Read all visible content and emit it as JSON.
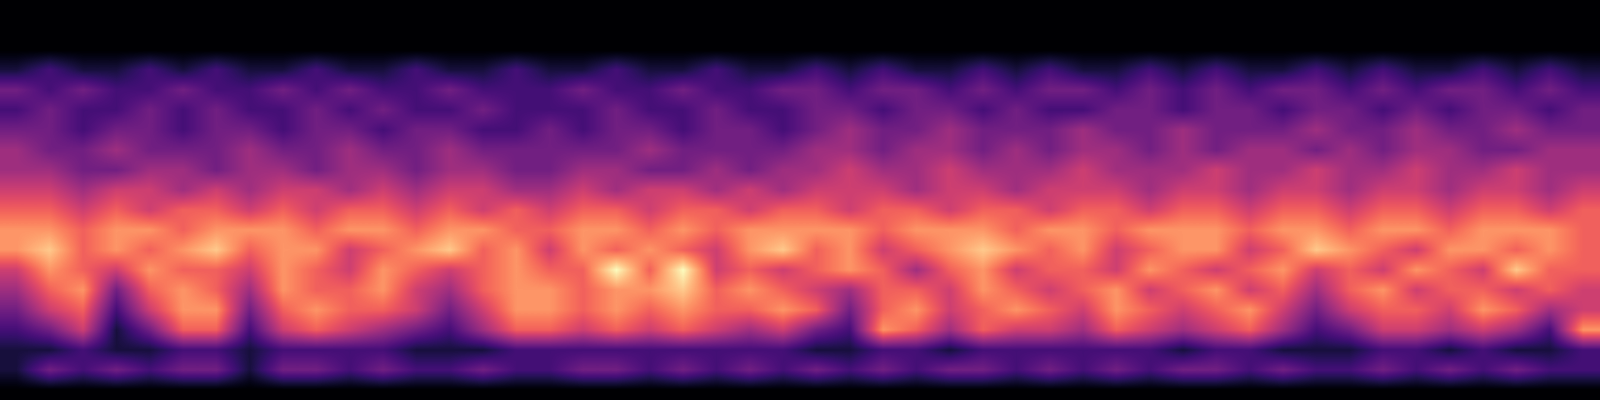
{
  "chart_data": {
    "type": "heatmap",
    "color": "magma",
    "tick_labels": false,
    "grid": false,
    "value_range": [
      0,
      9
    ],
    "cells": [
      [
        0,
        0,
        0,
        0,
        0,
        0,
        0,
        0,
        0,
        0,
        0,
        0,
        0,
        0,
        0,
        0,
        0,
        0,
        0,
        0,
        0,
        0,
        0,
        0,
        0,
        0,
        0,
        0,
        0,
        0,
        0,
        0,
        0,
        0,
        0,
        0,
        0,
        0,
        0,
        0,
        0,
        0,
        0,
        0,
        0,
        0,
        0,
        0
      ],
      [
        0,
        0,
        0,
        0,
        0,
        0,
        0,
        0,
        0,
        0,
        0,
        0,
        0,
        0,
        0,
        0,
        0,
        0,
        0,
        0,
        0,
        0,
        0,
        0,
        0,
        0,
        0,
        0,
        0,
        0,
        0,
        0,
        0,
        0,
        0,
        0,
        0,
        0,
        0,
        0,
        0,
        0,
        0,
        0,
        0,
        0,
        0,
        0
      ],
      [
        0,
        0,
        0,
        0,
        0,
        0,
        0,
        0,
        0,
        0,
        0,
        0,
        0,
        0,
        0,
        0,
        0,
        0,
        0,
        0,
        0,
        0,
        0,
        0,
        0,
        0,
        0,
        0,
        0,
        0,
        0,
        0,
        0,
        0,
        0,
        0,
        0,
        0,
        0,
        0,
        0,
        0,
        0,
        0,
        0,
        0,
        0,
        0
      ],
      [
        1,
        2,
        1,
        1,
        2,
        1,
        2,
        1,
        1,
        2,
        1,
        1,
        2,
        1,
        1,
        2,
        1,
        1,
        2,
        1,
        1,
        2,
        1,
        1,
        2,
        1,
        2,
        1,
        1,
        2,
        1,
        2,
        1,
        1,
        2,
        1,
        2,
        1,
        1,
        2,
        1,
        2,
        1,
        1,
        2,
        1,
        2,
        1
      ],
      [
        3,
        2,
        3,
        2,
        2,
        3,
        2,
        2,
        3,
        2,
        3,
        2,
        2,
        3,
        2,
        2,
        2,
        3,
        2,
        2,
        3,
        2,
        2,
        3,
        3,
        2,
        3,
        3,
        2,
        3,
        2,
        3,
        3,
        2,
        3,
        2,
        3,
        2,
        3,
        3,
        2,
        3,
        2,
        3,
        3,
        2,
        3,
        2
      ],
      [
        2,
        3,
        2,
        2,
        3,
        2,
        3,
        2,
        2,
        3,
        2,
        3,
        2,
        2,
        3,
        2,
        2,
        2,
        3,
        2,
        2,
        3,
        2,
        2,
        3,
        3,
        2,
        3,
        3,
        2,
        3,
        2,
        2,
        3,
        3,
        2,
        3,
        3,
        2,
        3,
        3,
        2,
        3,
        2,
        3,
        3,
        2,
        3
      ],
      [
        3,
        3,
        2,
        3,
        3,
        2,
        3,
        3,
        2,
        3,
        3,
        2,
        3,
        3,
        2,
        2,
        3,
        2,
        3,
        3,
        2,
        3,
        3,
        2,
        3,
        4,
        3,
        3,
        4,
        3,
        3,
        3,
        4,
        3,
        3,
        4,
        3,
        3,
        3,
        4,
        3,
        3,
        4,
        3,
        3,
        4,
        3,
        3
      ],
      [
        4,
        3,
        3,
        4,
        3,
        3,
        3,
        4,
        3,
        3,
        4,
        3,
        3,
        4,
        3,
        3,
        3,
        3,
        3,
        4,
        3,
        3,
        3,
        3,
        4,
        4,
        3,
        4,
        4,
        3,
        4,
        3,
        4,
        4,
        3,
        4,
        3,
        4,
        4,
        3,
        4,
        3,
        4,
        4,
        3,
        3,
        4,
        4
      ],
      [
        4,
        4,
        3,
        3,
        4,
        4,
        3,
        4,
        4,
        3,
        4,
        4,
        3,
        4,
        4,
        3,
        3,
        4,
        4,
        3,
        3,
        4,
        3,
        4,
        4,
        5,
        4,
        4,
        5,
        4,
        4,
        4,
        5,
        4,
        4,
        4,
        5,
        4,
        4,
        5,
        4,
        4,
        5,
        4,
        4,
        5,
        4,
        4
      ],
      [
        5,
        5,
        4,
        5,
        5,
        4,
        5,
        4,
        5,
        5,
        4,
        5,
        4,
        5,
        5,
        4,
        4,
        5,
        4,
        5,
        5,
        4,
        5,
        4,
        5,
        5,
        5,
        4,
        5,
        5,
        4,
        5,
        5,
        5,
        4,
        5,
        5,
        4,
        5,
        5,
        4,
        5,
        5,
        4,
        5,
        5,
        4,
        5
      ],
      [
        6,
        6,
        5,
        6,
        5,
        6,
        6,
        5,
        6,
        5,
        6,
        6,
        5,
        6,
        5,
        6,
        5,
        6,
        6,
        5,
        6,
        6,
        5,
        6,
        6,
        5,
        6,
        6,
        5,
        6,
        6,
        5,
        6,
        6,
        5,
        6,
        6,
        5,
        6,
        6,
        5,
        6,
        6,
        5,
        6,
        6,
        5,
        6
      ],
      [
        7,
        7,
        6,
        7,
        7,
        6,
        7,
        7,
        7,
        6,
        7,
        7,
        6,
        7,
        7,
        6,
        6,
        7,
        7,
        6,
        7,
        6,
        7,
        7,
        7,
        7,
        6,
        7,
        7,
        7,
        6,
        7,
        7,
        6,
        7,
        7,
        7,
        6,
        7,
        7,
        6,
        7,
        7,
        6,
        7,
        7,
        7,
        6
      ],
      [
        7,
        8,
        6,
        7,
        6,
        7,
        8,
        6,
        7,
        7,
        5,
        6,
        7,
        8,
        6,
        7,
        5,
        7,
        6,
        7,
        6,
        5,
        7,
        8,
        6,
        7,
        5,
        6,
        7,
        8,
        7,
        6,
        7,
        5,
        6,
        7,
        7,
        5,
        6,
        8,
        7,
        6,
        5,
        7,
        7,
        6,
        7,
        6
      ],
      [
        5,
        7,
        6,
        5,
        7,
        6,
        6,
        5,
        7,
        6,
        5,
        7,
        6,
        5,
        6,
        7,
        6,
        6,
        9,
        6,
        9,
        5,
        6,
        5,
        6,
        7,
        6,
        4,
        6,
        7,
        5,
        6,
        6,
        5,
        7,
        6,
        5,
        6,
        7,
        5,
        6,
        5,
        7,
        6,
        5,
        8,
        6,
        6
      ],
      [
        4,
        6,
        7,
        3,
        6,
        7,
        6,
        4,
        7,
        6,
        6,
        7,
        5,
        4,
        6,
        7,
        7,
        6,
        7,
        7,
        8,
        6,
        7,
        6,
        5,
        4,
        6,
        6,
        5,
        7,
        6,
        5,
        6,
        7,
        5,
        6,
        7,
        5,
        6,
        4,
        6,
        7,
        5,
        6,
        6,
        5,
        6,
        5
      ],
      [
        3,
        5,
        6,
        2,
        5,
        7,
        7,
        3,
        6,
        7,
        6,
        6,
        5,
        3,
        5,
        7,
        7,
        6,
        7,
        6,
        7,
        6,
        6,
        7,
        6,
        3,
        6,
        7,
        5,
        6,
        7,
        6,
        5,
        7,
        6,
        5,
        6,
        7,
        5,
        3,
        5,
        6,
        6,
        5,
        7,
        6,
        4,
        5
      ],
      [
        2,
        3,
        5,
        1,
        3,
        6,
        6,
        2,
        5,
        6,
        5,
        4,
        3,
        2,
        4,
        6,
        6,
        5,
        6,
        5,
        6,
        5,
        4,
        5,
        3,
        2,
        7,
        6,
        4,
        6,
        5,
        5,
        4,
        6,
        5,
        4,
        5,
        6,
        4,
        2,
        3,
        5,
        5,
        4,
        5,
        4,
        2,
        7
      ],
      [
        1,
        1,
        2,
        1,
        1,
        2,
        2,
        1,
        2,
        2,
        2,
        2,
        1,
        1,
        1,
        2,
        2,
        2,
        2,
        2,
        2,
        2,
        2,
        2,
        1,
        1,
        2,
        2,
        1,
        2,
        2,
        2,
        2,
        2,
        2,
        1,
        2,
        2,
        1,
        1,
        1,
        2,
        2,
        1,
        2,
        1,
        1,
        2
      ],
      [
        1,
        3,
        2,
        3,
        2,
        3,
        3,
        1,
        3,
        3,
        2,
        3,
        2,
        2,
        3,
        2,
        2,
        3,
        3,
        2,
        3,
        2,
        3,
        2,
        3,
        2,
        3,
        2,
        3,
        3,
        2,
        3,
        2,
        3,
        2,
        3,
        3,
        2,
        3,
        2,
        2,
        3,
        2,
        3,
        2,
        3,
        2,
        2
      ],
      [
        0,
        0,
        0,
        0,
        0,
        0,
        0,
        0,
        0,
        0,
        0,
        0,
        0,
        0,
        0,
        0,
        0,
        0,
        0,
        0,
        0,
        0,
        0,
        0,
        0,
        0,
        0,
        0,
        0,
        0,
        0,
        0,
        0,
        0,
        0,
        0,
        0,
        0,
        0,
        0,
        0,
        0,
        0,
        0,
        0,
        0,
        0,
        0
      ]
    ]
  }
}
